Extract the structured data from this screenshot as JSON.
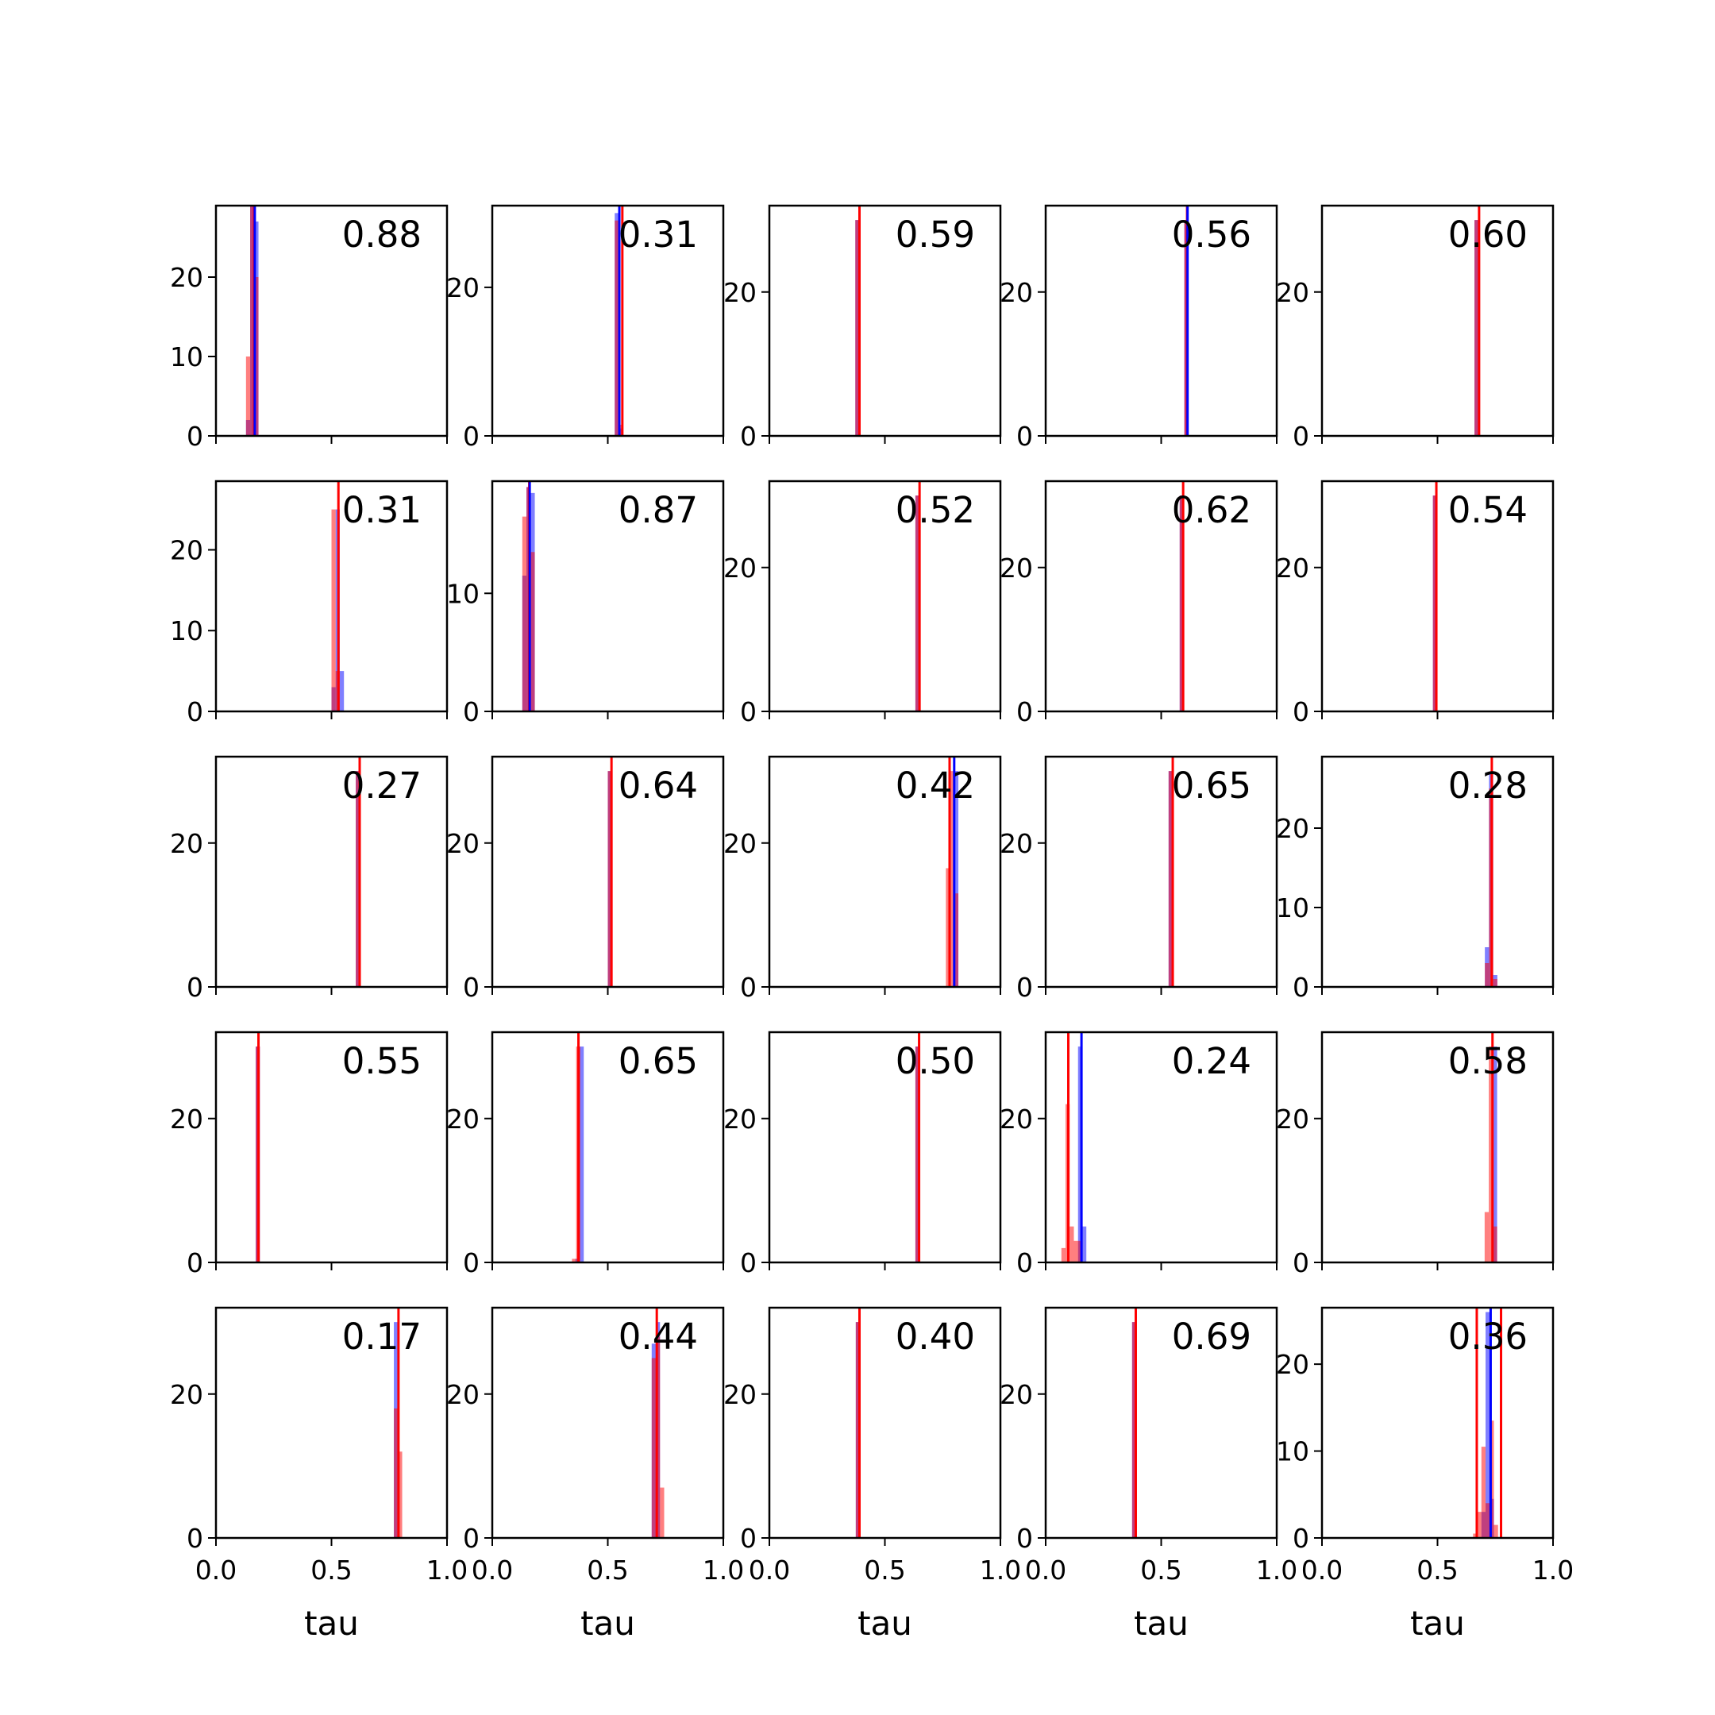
{
  "colors": {
    "blue": "#0000ff",
    "red": "#ff0000",
    "axes": "#000000"
  },
  "chart_data": {
    "type": "histogram-grid",
    "rows": 5,
    "cols": 5,
    "xlabel": "tau",
    "xlim": [
      0,
      1
    ],
    "xticks": [
      0,
      0.5,
      1
    ],
    "xtick_labels": [
      "0.0",
      "0.5",
      "1.0"
    ],
    "bin_width": 0.018,
    "panels": [
      {
        "label": "0.88",
        "yticks": [
          0,
          10,
          20
        ],
        "ylim": [
          0,
          29
        ],
        "blue": {
          "bins": [
            [
              0.13,
              2
            ],
            [
              0.148,
              29
            ],
            [
              0.166,
              27
            ]
          ]
        },
        "red": {
          "bins": [
            [
              0.13,
              10
            ],
            [
              0.148,
              29
            ],
            [
              0.166,
              20
            ]
          ]
        },
        "lines": [
          {
            "x": 0.165,
            "color": "red"
          },
          {
            "x": 0.168,
            "color": "blue"
          }
        ]
      },
      {
        "label": "0.31",
        "yticks": [
          0,
          20
        ],
        "ylim": [
          0,
          31
        ],
        "blue": {
          "bins": [
            [
              0.53,
              30
            ],
            [
              0.548,
              1
            ]
          ]
        },
        "red": {
          "bins": [
            [
              0.53,
              29
            ],
            [
              0.548,
              1.5
            ]
          ]
        },
        "lines": [
          {
            "x": 0.55,
            "color": "blue"
          },
          {
            "x": 0.563,
            "color": "red"
          }
        ]
      },
      {
        "label": "0.59",
        "yticks": [
          0,
          20
        ],
        "ylim": [
          0,
          32
        ],
        "blue": {
          "bins": [
            [
              0.372,
              30
            ]
          ]
        },
        "red": {
          "bins": [
            [
              0.372,
              30
            ]
          ]
        },
        "lines": [
          {
            "x": 0.39,
            "color": "red"
          }
        ]
      },
      {
        "label": "0.56",
        "yticks": [
          0,
          20
        ],
        "ylim": [
          0,
          32
        ],
        "blue": {
          "bins": [
            [
              0.6,
              30
            ]
          ]
        },
        "red": {
          "bins": [
            [
              0.6,
              30
            ]
          ]
        },
        "lines": [
          {
            "x": 0.612,
            "color": "red"
          },
          {
            "x": 0.614,
            "color": "blue"
          }
        ]
      },
      {
        "label": "0.60",
        "yticks": [
          0,
          20
        ],
        "ylim": [
          0,
          32
        ],
        "blue": {
          "bins": [
            [
              0.66,
              30
            ]
          ]
        },
        "red": {
          "bins": [
            [
              0.66,
              30
            ]
          ]
        },
        "lines": [
          {
            "x": 0.68,
            "color": "red"
          }
        ]
      },
      {
        "label": "0.31",
        "yticks": [
          0,
          10,
          20
        ],
        "ylim": [
          0,
          28.5
        ],
        "blue": {
          "bins": [
            [
              0.5,
              3
            ],
            [
              0.518,
              25
            ],
            [
              0.536,
              5
            ]
          ]
        },
        "red": {
          "bins": [
            [
              0.5,
              25
            ],
            [
              0.518,
              5
            ]
          ]
        },
        "lines": [
          {
            "x": 0.53,
            "color": "red"
          }
        ]
      },
      {
        "label": "0.87",
        "yticks": [
          0,
          10
        ],
        "ylim": [
          0,
          19.5
        ],
        "blue": {
          "bins": [
            [
              0.13,
              11.5
            ],
            [
              0.148,
              19
            ],
            [
              0.166,
              18.5
            ]
          ]
        },
        "red": {
          "bins": [
            [
              0.13,
              16.5
            ],
            [
              0.148,
              19
            ],
            [
              0.166,
              13.5
            ]
          ]
        },
        "lines": [
          {
            "x": 0.16,
            "color": "red"
          },
          {
            "x": 0.162,
            "color": "blue"
          }
        ]
      },
      {
        "label": "0.52",
        "yticks": [
          0,
          20
        ],
        "ylim": [
          0,
          32
        ],
        "blue": {
          "bins": [
            [
              0.632,
              30
            ]
          ]
        },
        "red": {
          "bins": [
            [
              0.632,
              30
            ]
          ]
        },
        "lines": [
          {
            "x": 0.65,
            "color": "red"
          }
        ]
      },
      {
        "label": "0.62",
        "yticks": [
          0,
          20
        ],
        "ylim": [
          0,
          32
        ],
        "blue": {
          "bins": [
            [
              0.58,
              30
            ]
          ]
        },
        "red": {
          "bins": [
            [
              0.58,
              30
            ]
          ]
        },
        "lines": [
          {
            "x": 0.595,
            "color": "red"
          }
        ]
      },
      {
        "label": "0.54",
        "yticks": [
          0,
          20
        ],
        "ylim": [
          0,
          32
        ],
        "blue": {
          "bins": [
            [
              0.48,
              30
            ]
          ]
        },
        "red": {
          "bins": [
            [
              0.48,
              30
            ]
          ]
        },
        "lines": [
          {
            "x": 0.495,
            "color": "red"
          }
        ]
      },
      {
        "label": "0.27",
        "yticks": [
          0,
          20
        ],
        "ylim": [
          0,
          32
        ],
        "blue": {
          "bins": [
            [
              0.605,
              30
            ]
          ]
        },
        "red": {
          "bins": [
            [
              0.605,
              30
            ]
          ]
        },
        "lines": [
          {
            "x": 0.622,
            "color": "red"
          }
        ]
      },
      {
        "label": "0.64",
        "yticks": [
          0,
          20
        ],
        "ylim": [
          0,
          32
        ],
        "blue": {
          "bins": [
            [
              0.5,
              30
            ]
          ]
        },
        "red": {
          "bins": [
            [
              0.5,
              30
            ]
          ]
        },
        "lines": [
          {
            "x": 0.516,
            "color": "red"
          }
        ]
      },
      {
        "label": "0.42",
        "yticks": [
          0,
          20
        ],
        "ylim": [
          0,
          32
        ],
        "blue": {
          "bins": [
            [
              0.8,
              30
            ]
          ]
        },
        "red": {
          "bins": [
            [
              0.764,
              16.5
            ],
            [
              0.782,
              30
            ],
            [
              0.8,
              13
            ]
          ]
        },
        "lines": [
          {
            "x": 0.78,
            "color": "red"
          },
          {
            "x": 0.8,
            "color": "blue"
          }
        ]
      },
      {
        "label": "0.65",
        "yticks": [
          0,
          20
        ],
        "ylim": [
          0,
          32
        ],
        "blue": {
          "bins": [
            [
              0.532,
              30
            ]
          ]
        },
        "red": {
          "bins": [
            [
              0.532,
              30
            ]
          ]
        },
        "lines": [
          {
            "x": 0.55,
            "color": "red"
          }
        ]
      },
      {
        "label": "0.28",
        "yticks": [
          0,
          10,
          20
        ],
        "ylim": [
          0,
          29
        ],
        "blue": {
          "bins": [
            [
              0.705,
              5
            ],
            [
              0.723,
              27
            ],
            [
              0.741,
              1.5
            ]
          ]
        },
        "red": {
          "bins": [
            [
              0.705,
              3
            ],
            [
              0.723,
              25
            ],
            [
              0.741,
              1
            ]
          ]
        },
        "lines": [
          {
            "x": 0.735,
            "color": "red"
          }
        ]
      },
      {
        "label": "0.55",
        "yticks": [
          0,
          20
        ],
        "ylim": [
          0,
          32
        ],
        "blue": {
          "bins": [
            [
              0.172,
              30
            ]
          ]
        },
        "red": {
          "bins": [
            [
              0.172,
              30
            ]
          ]
        },
        "lines": [
          {
            "x": 0.184,
            "color": "red"
          }
        ]
      },
      {
        "label": "0.65",
        "yticks": [
          0,
          20
        ],
        "ylim": [
          0,
          32
        ],
        "blue": {
          "bins": [
            [
              0.36,
              0.5
            ],
            [
              0.378,
              30
            ]
          ]
        },
        "red": {
          "bins": [
            [
              0.345,
              0.5
            ],
            [
              0.363,
              30
            ]
          ]
        },
        "lines": [
          {
            "x": 0.373,
            "color": "red"
          }
        ]
      },
      {
        "label": "0.50",
        "yticks": [
          0,
          20
        ],
        "ylim": [
          0,
          32
        ],
        "blue": {
          "bins": [
            [
              0.632,
              30
            ]
          ]
        },
        "red": {
          "bins": [
            [
              0.632,
              30
            ]
          ]
        },
        "lines": [
          {
            "x": 0.648,
            "color": "red"
          }
        ]
      },
      {
        "label": "0.24",
        "yticks": [
          0,
          20
        ],
        "ylim": [
          0,
          32
        ],
        "blue": {
          "bins": [
            [
              0.14,
              30
            ],
            [
              0.158,
              5
            ]
          ]
        },
        "red": {
          "bins": [
            [
              0.068,
              2
            ],
            [
              0.086,
              22
            ],
            [
              0.104,
              5
            ],
            [
              0.122,
              3
            ],
            [
              0.14,
              3
            ]
          ]
        },
        "lines": [
          {
            "x": 0.098,
            "color": "red"
          },
          {
            "x": 0.155,
            "color": "blue"
          }
        ]
      },
      {
        "label": "0.58",
        "yticks": [
          0,
          20
        ],
        "ylim": [
          0,
          32
        ],
        "blue": {
          "bins": [
            [
              0.74,
              30
            ]
          ]
        },
        "red": {
          "bins": [
            [
              0.704,
              7
            ],
            [
              0.722,
              30
            ],
            [
              0.74,
              5
            ]
          ]
        },
        "lines": [
          {
            "x": 0.738,
            "color": "red"
          }
        ]
      },
      {
        "label": "0.17",
        "yticks": [
          0,
          20
        ],
        "ylim": [
          0,
          32
        ],
        "blue": {
          "bins": [
            [
              0.77,
              30
            ]
          ]
        },
        "red": {
          "bins": [
            [
              0.77,
              18
            ],
            [
              0.788,
              12
            ]
          ]
        },
        "lines": [
          {
            "x": 0.79,
            "color": "red"
          }
        ]
      },
      {
        "label": "0.44",
        "yticks": [
          0,
          20
        ],
        "ylim": [
          0,
          32
        ],
        "blue": {
          "bins": [
            [
              0.69,
              27
            ],
            [
              0.708,
              30
            ]
          ]
        },
        "red": {
          "bins": [
            [
              0.69,
              25
            ],
            [
              0.708,
              28
            ],
            [
              0.726,
              7
            ]
          ]
        },
        "lines": [
          {
            "x": 0.712,
            "color": "red"
          }
        ]
      },
      {
        "label": "0.40",
        "yticks": [
          0,
          20
        ],
        "ylim": [
          0,
          32
        ],
        "blue": {
          "bins": [
            [
              0.374,
              30
            ]
          ]
        },
        "red": {
          "bins": [
            [
              0.374,
              30
            ]
          ]
        },
        "lines": [
          {
            "x": 0.39,
            "color": "red"
          }
        ]
      },
      {
        "label": "0.69",
        "yticks": [
          0,
          20
        ],
        "ylim": [
          0,
          32
        ],
        "blue": {
          "bins": [
            [
              0.374,
              30
            ]
          ]
        },
        "red": {
          "bins": [
            [
              0.374,
              30
            ]
          ]
        },
        "lines": [
          {
            "x": 0.39,
            "color": "red"
          }
        ]
      },
      {
        "label": "0.36",
        "yticks": [
          0,
          10,
          20
        ],
        "ylim": [
          0,
          26.5
        ],
        "blue": {
          "bins": [
            [
              0.69,
              3
            ],
            [
              0.708,
              26
            ],
            [
              0.726,
              4.5
            ]
          ]
        },
        "red": {
          "bins": [
            [
              0.654,
              0.5
            ],
            [
              0.672,
              3
            ],
            [
              0.69,
              10.5
            ],
            [
              0.708,
              4
            ],
            [
              0.726,
              13.5
            ],
            [
              0.744,
              1.5
            ]
          ]
        },
        "lines": [
          {
            "x": 0.67,
            "color": "red"
          },
          {
            "x": 0.775,
            "color": "red"
          },
          {
            "x": 0.73,
            "color": "blue"
          }
        ]
      }
    ]
  }
}
